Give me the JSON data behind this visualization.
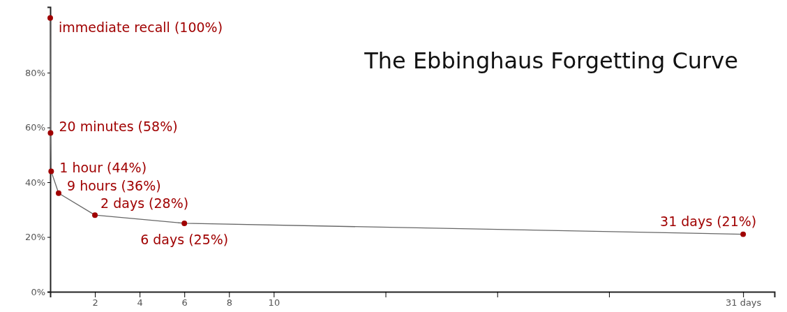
{
  "chart_data": {
    "type": "line",
    "title": "The Ebbinghaus Forgetting Curve",
    "x": [
      0,
      0.0139,
      0.0417,
      0.375,
      2,
      6,
      31
    ],
    "series": [
      {
        "color": "#a00000",
        "values": [
          100,
          58,
          44,
          36,
          28,
          25,
          21
        ]
      }
    ],
    "xlim": [
      0,
      32.4
    ],
    "xticks": [
      2,
      4,
      6,
      8,
      10,
      {
        "value": 15,
        "label": null
      },
      {
        "value": 20,
        "label": null
      },
      {
        "value": 25,
        "label": null
      },
      {
        "value": 31,
        "label": "31 days"
      }
    ],
    "ylim": [
      0,
      104
    ],
    "yticks": [
      {
        "value": 0,
        "label": "0%"
      },
      {
        "value": 20,
        "label": "20%"
      },
      {
        "value": 40,
        "label": "40%"
      },
      {
        "value": 60,
        "label": "60%"
      },
      {
        "value": 80,
        "label": "80%"
      }
    ],
    "grid": false,
    "marker": "circle",
    "line_style": "solid",
    "annotations": [
      {
        "text": "immediate recall (100%)",
        "x": 0,
        "y": 100
      },
      {
        "text": "20 minutes (58%)",
        "x": 0.0139,
        "y": 58
      },
      {
        "text": "1 hour (44%)",
        "x": 0.0417,
        "y": 44
      },
      {
        "text": "9 hours (36%)",
        "x": 0.375,
        "y": 36
      },
      {
        "text": "2 days (28%)",
        "x": 2,
        "y": 28
      },
      {
        "text": "6 days (25%)",
        "x": 6,
        "y": 25
      },
      {
        "text": "31 days (21%)",
        "x": 31,
        "y": 21
      }
    ]
  }
}
